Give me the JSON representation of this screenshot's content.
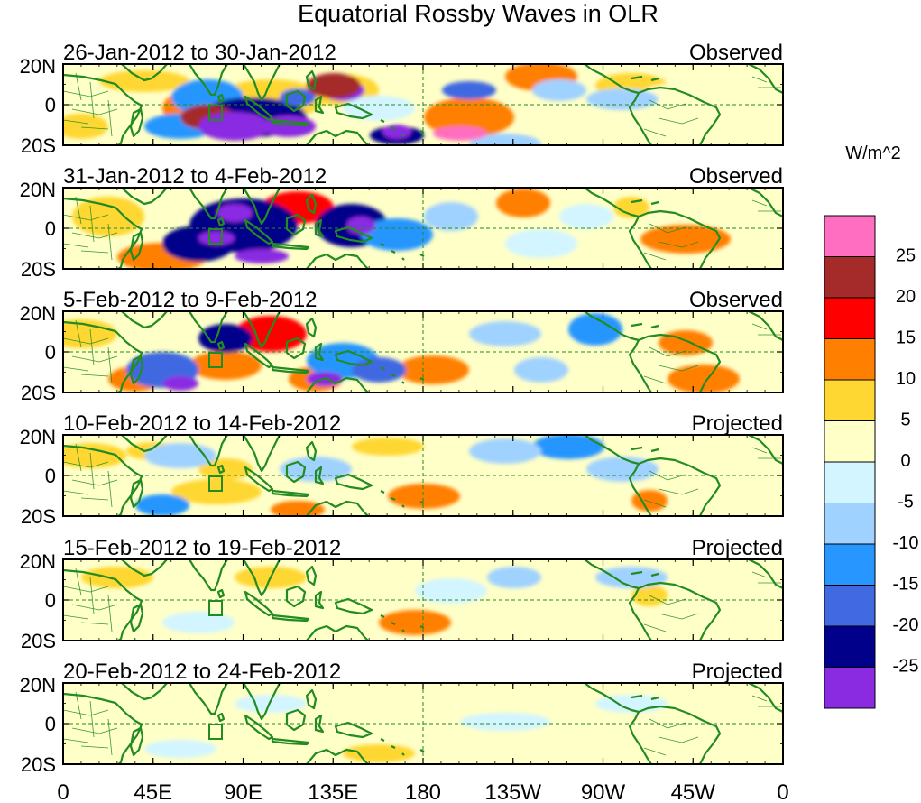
{
  "title": "Equatorial Rossby Waves in OLR",
  "panels": [
    {
      "date": "26-Jan-2012 to 30-Jan-2012",
      "status": "Observed"
    },
    {
      "date": "31-Jan-2012 to 4-Feb-2012",
      "status": "Observed"
    },
    {
      "date": "5-Feb-2012 to 9-Feb-2012",
      "status": "Observed"
    },
    {
      "date": "10-Feb-2012 to 14-Feb-2012",
      "status": "Projected"
    },
    {
      "date": "15-Feb-2012 to 19-Feb-2012",
      "status": "Projected"
    },
    {
      "date": "20-Feb-2012 to 24-Feb-2012",
      "status": "Projected"
    }
  ],
  "lat_labels": [
    "20N",
    "0",
    "20S"
  ],
  "lon_labels": [
    "0",
    "45E",
    "90E",
    "135E",
    "180",
    "135W",
    "90W",
    "45W",
    "0"
  ],
  "colorbar": {
    "unit": "W/m^2",
    "labels": [
      "25",
      "20",
      "15",
      "10",
      "5",
      "0",
      "-5",
      "-10",
      "-15",
      "-20",
      "-25"
    ],
    "colors": [
      "#ff6ec0",
      "#a52a2a",
      "#ff0000",
      "#ff7f00",
      "#ffd732",
      "#ffffc8",
      "#d2f5ff",
      "#a0d2ff",
      "#2896ff",
      "#4169e1",
      "#00008b",
      "#8a2be2"
    ]
  },
  "colors": {
    "coast": "#228b22",
    "guide": "#228b22"
  }
}
